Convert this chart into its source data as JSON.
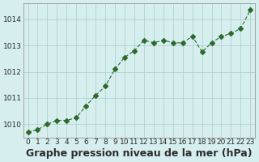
{
  "x": [
    0,
    1,
    2,
    3,
    4,
    5,
    6,
    7,
    8,
    9,
    10,
    11,
    12,
    13,
    14,
    15,
    16,
    17,
    18,
    19,
    20,
    21,
    22,
    23
  ],
  "y": [
    1009.7,
    1009.8,
    1010.0,
    1010.15,
    1010.15,
    1010.25,
    1010.7,
    1011.1,
    1011.45,
    1012.1,
    1012.55,
    1012.8,
    1013.2,
    1013.1,
    1013.2,
    1013.1,
    1013.1,
    1013.35,
    1012.75,
    1013.1,
    1013.35,
    1013.45,
    1013.65,
    1014.35
  ],
  "line_color": "#2d6a2d",
  "marker": "D",
  "marker_size": 3,
  "background_color": "#d6eeee",
  "grid_color": "#aacccc",
  "xlabel": "Graphe pression niveau de la mer (hPa)",
  "xlabel_fontsize": 9,
  "ylim": [
    1009.5,
    1014.6
  ],
  "yticks": [
    1010,
    1011,
    1012,
    1013,
    1014
  ],
  "xticks": [
    0,
    1,
    2,
    3,
    4,
    5,
    6,
    7,
    8,
    9,
    10,
    11,
    12,
    13,
    14,
    15,
    16,
    17,
    18,
    19,
    20,
    21,
    22,
    23
  ],
  "tick_label_color": "#2d2d2d",
  "tick_label_fontsize": 6.5,
  "xlabel_bold": true
}
